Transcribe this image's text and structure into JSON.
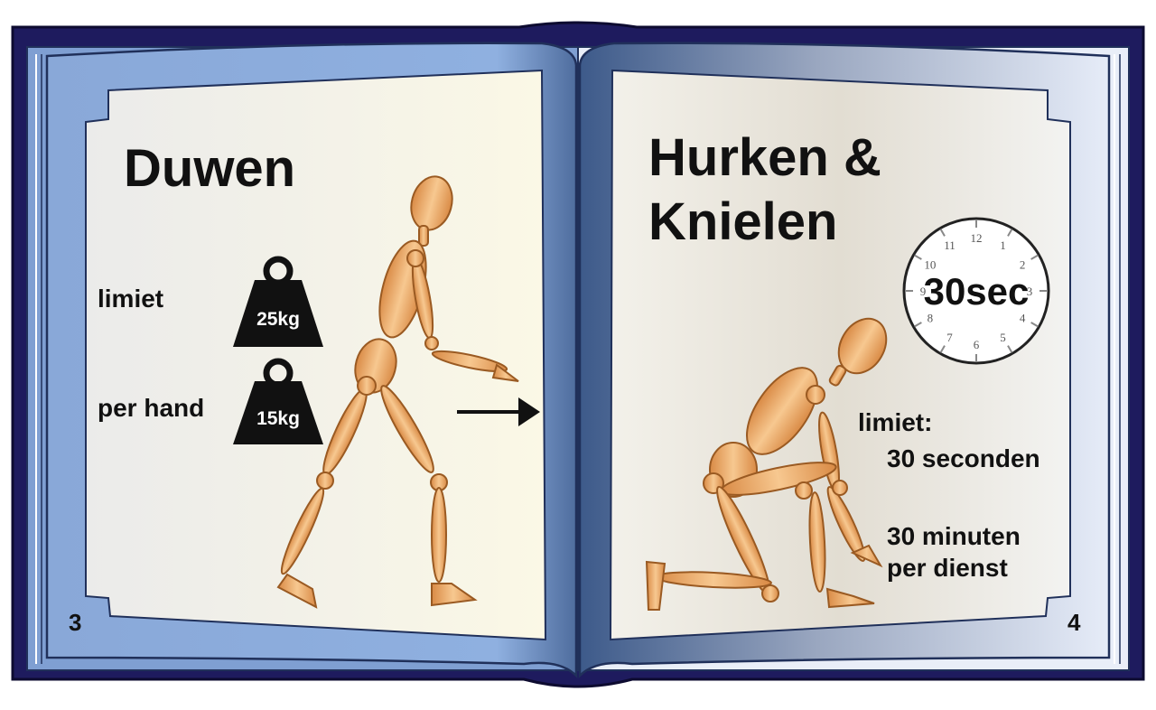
{
  "left_page": {
    "title": "Duwen",
    "limit_label": "limiet",
    "per_hand_label": "per hand",
    "weight_limit": "25kg",
    "weight_per_hand": "15kg",
    "page_number": "3"
  },
  "right_page": {
    "title_line1": "Hurken &",
    "title_line2": "Knielen",
    "clock_label": "30sec",
    "limit_label": "limiet:",
    "limit_seconds": "30 seconden",
    "limit_minutes_line1": "30 minuten",
    "limit_minutes_line2": "per dienst",
    "page_number": "4"
  },
  "clock_numbers": [
    "12",
    "1",
    "2",
    "3",
    "4",
    "5",
    "6",
    "7",
    "8",
    "9",
    "10",
    "11"
  ],
  "icons": {
    "left_figure": "wooden-mannequin-pushing-icon",
    "right_figure": "wooden-mannequin-kneeling-icon",
    "weight": "kettlebell-weight-icon",
    "clock": "clock-icon",
    "arrow": "push-arrow-icon"
  },
  "colors": {
    "cover": "#1e1b5e",
    "page_blue": "#8aabdc",
    "page_dark": "#3d5a8a",
    "paper": "#f6f5ea",
    "wood": "#e6a25e",
    "wood_stroke": "#9a5a22"
  }
}
